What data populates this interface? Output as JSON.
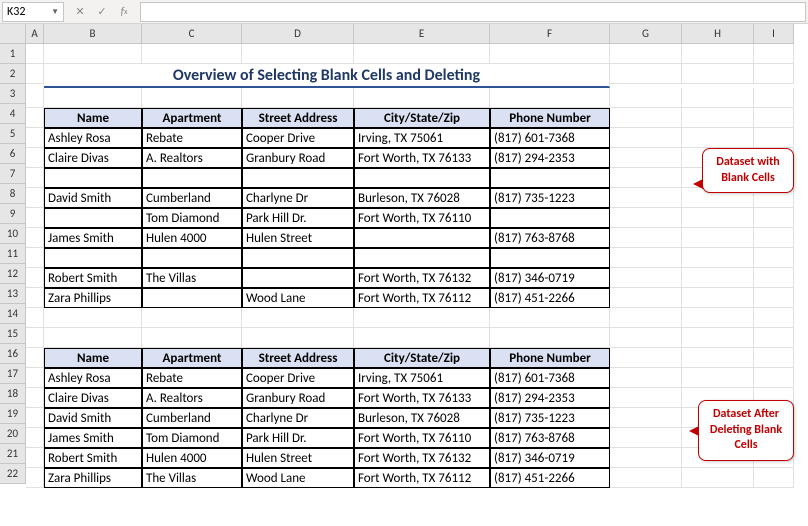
{
  "nameBox": "K32",
  "formula": "",
  "title": "Overview of Selecting Blank Cells and Deleting",
  "columns": {
    "A": 18,
    "B": 98,
    "C": 100,
    "D": 112,
    "E": 136,
    "F": 120,
    "G": 72,
    "H": 72,
    "I": 40
  },
  "colLabels": [
    "A",
    "B",
    "C",
    "D",
    "E",
    "F",
    "G",
    "H",
    "I"
  ],
  "rowLabels": [
    "1",
    "2",
    "3",
    "4",
    "5",
    "6",
    "7",
    "8",
    "9",
    "10",
    "11",
    "12",
    "13",
    "14",
    "15",
    "16",
    "17",
    "18",
    "19",
    "20",
    "21",
    "22"
  ],
  "headers": [
    "Name",
    "Apartment",
    "Street Address",
    "City/State/Zip",
    "Phone Number"
  ],
  "table1": [
    [
      "Ashley Rosa",
      "Rebate",
      "Cooper Drive",
      "Irving, TX 75061",
      "(817) 601-7368"
    ],
    [
      "Claire Divas",
      "A. Realtors",
      "Granbury Road",
      "Fort Worth, TX 76133",
      "(817) 294-2353"
    ],
    [
      "",
      "",
      "",
      "",
      ""
    ],
    [
      "David Smith",
      "Cumberland",
      "Charlyne Dr",
      "Burleson, TX 76028",
      "(817) 735-1223"
    ],
    [
      "",
      "Tom Diamond",
      "Park Hill Dr.",
      "Fort Worth, TX 76110",
      ""
    ],
    [
      "James Smith",
      "Hulen 4000",
      "Hulen Street",
      "",
      "(817) 763-8768"
    ],
    [
      "",
      "",
      "",
      "",
      ""
    ],
    [
      "Robert Smith",
      "The Villas",
      "",
      "Fort Worth, TX 76132",
      "(817) 346-0719"
    ],
    [
      "Zara Phillips",
      "",
      "Wood Lane",
      "Fort Worth, TX 76112",
      "(817) 451-2266"
    ]
  ],
  "table2": [
    [
      "Ashley Rosa",
      "Rebate",
      "Cooper Drive",
      "Irving, TX 75061",
      "(817) 601-7368"
    ],
    [
      "Claire Divas",
      "A. Realtors",
      "Granbury Road",
      "Fort Worth, TX 76133",
      "(817) 294-2353"
    ],
    [
      "David Smith",
      "Cumberland",
      "Charlyne Dr",
      "Burleson, TX 76028",
      "(817) 735-1223"
    ],
    [
      "James Smith",
      "Tom Diamond",
      "Park Hill Dr.",
      "Fort Worth, TX 76110",
      "(817) 763-8768"
    ],
    [
      "Robert Smith",
      "Hulen 4000",
      "Hulen Street",
      "Fort Worth, TX 76132",
      "(817) 346-0719"
    ],
    [
      "Zara Phillips",
      "The Villas",
      "Wood Lane",
      "Fort Worth, TX 76112",
      "(817) 451-2266"
    ]
  ],
  "callout1": "Dataset with\nBlank Cells",
  "callout2": "Dataset After\nDeleting Blank\nCells"
}
